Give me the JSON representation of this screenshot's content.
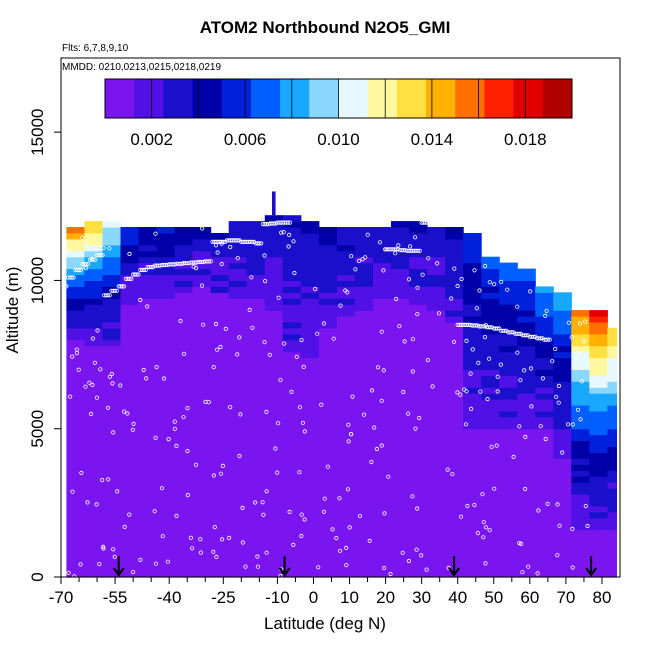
{
  "chart_data": {
    "type": "heatmap",
    "title": "ATOM2 Northbound N2O5_GMI",
    "flights_note": "Flts: 6,7,8,9,10",
    "dates_note": "MMDD: 0210,0213,0215,0218,0219",
    "xlabel": "Latitude (deg N)",
    "ylabel": "Altitude (m)",
    "xlim": [
      -70,
      85
    ],
    "ylim": [
      0,
      17500
    ],
    "x_ticks": [
      -70,
      -55,
      -40,
      -25,
      -10,
      0,
      10,
      20,
      30,
      40,
      50,
      60,
      70,
      80
    ],
    "x_tick_labels": [
      "-70",
      "-55",
      "-40",
      "-25",
      "-10",
      "0",
      "10",
      "20",
      "30",
      "40",
      "50",
      "60",
      "70",
      "80"
    ],
    "x_minor_ticks": [
      -65,
      -60,
      -50,
      -45,
      -35,
      -30,
      -20,
      -15,
      -5,
      5,
      15,
      25,
      35,
      45,
      55,
      65,
      75
    ],
    "y_ticks": [
      0,
      5000,
      10000,
      15000
    ],
    "y_tick_labels": [
      "0",
      "5000",
      "10000",
      "15000"
    ],
    "colorbar": {
      "min": 0.0,
      "max": 0.02,
      "ticks": [
        0.002,
        0.006,
        0.01,
        0.014,
        0.018
      ],
      "tick_labels": [
        "0.002",
        "0.006",
        "0.010",
        "0.014",
        "0.018"
      ],
      "colors": [
        "#7a15f0",
        "#5010e6",
        "#1a10cc",
        "#0000a8",
        "#0020dc",
        "#0060ff",
        "#18a8ff",
        "#8ad8ff",
        "#e8f8ff",
        "#fff8a0",
        "#ffe040",
        "#ffb000",
        "#ff7000",
        "#ff2000",
        "#e00000",
        "#b00000"
      ]
    },
    "surface_level_value": 0.0005,
    "profile": {
      "lat": [
        -70,
        -65,
        -60,
        -55,
        -50,
        -45,
        -40,
        -35,
        -30,
        -25,
        -20,
        -15,
        -10,
        -5,
        0,
        5,
        10,
        15,
        20,
        25,
        30,
        35,
        40,
        45,
        50,
        55,
        60,
        65,
        70,
        75,
        80
      ],
      "top_m": [
        11800,
        12000,
        12000,
        11800,
        11800,
        11800,
        11800,
        11800,
        11600,
        11900,
        12000,
        12100,
        12200,
        12000,
        11800,
        11700,
        11800,
        11700,
        11900,
        11900,
        11800,
        11800,
        11600,
        10800,
        10600,
        10400,
        9800,
        9600,
        9000,
        9000,
        8300
      ],
      "upper_value": [
        0.016,
        0.015,
        0.012,
        0.006,
        0.005,
        0.006,
        0.005,
        0.004,
        0.004,
        0.004,
        0.004,
        0.004,
        0.004,
        0.004,
        0.004,
        0.004,
        0.004,
        0.004,
        0.004,
        0.004,
        0.004,
        0.004,
        0.006,
        0.007,
        0.007,
        0.007,
        0.008,
        0.009,
        0.016,
        0.018,
        0.014
      ],
      "background_top_m": [
        8000,
        7800,
        7800,
        9200,
        9400,
        9400,
        9500,
        9700,
        9500,
        9400,
        9300,
        9000,
        7600,
        7400,
        8400,
        8800,
        9000,
        9300,
        9400,
        9200,
        8900,
        8600,
        5000,
        4900,
        4900,
        5000,
        5000,
        4000,
        1500,
        1500,
        1500
      ]
    },
    "sample_tracks": [
      {
        "lat": [
          -70,
          -68,
          -66,
          -64,
          -62,
          -60,
          -58,
          -56,
          -54,
          -52,
          -50,
          -48,
          -46,
          -44,
          -42,
          -40,
          -38,
          -36,
          -34,
          -32,
          -30
        ],
        "alt_m": [
          9800,
          10100,
          10350,
          10550,
          10700,
          10850,
          9500,
          9650,
          9800,
          10050,
          10200,
          10350,
          10450,
          10500,
          10520,
          10540,
          10560,
          10580,
          10600,
          10620,
          10640
        ]
      },
      {
        "lat": [
          -28,
          -26,
          -24,
          -22,
          -20,
          -18,
          -16,
          -14,
          -12,
          -10,
          -8
        ],
        "alt_m": [
          11300,
          11300,
          11350,
          11350,
          11300,
          11300,
          11250,
          11900,
          11920,
          11950,
          11950
        ]
      },
      {
        "lat": [
          20,
          22,
          24,
          26,
          28,
          30,
          32,
          34,
          36,
          38
        ],
        "alt_m": [
          11050,
          11050,
          11020,
          11000,
          11000,
          11950,
          11980,
          11990,
          11980,
          11950
        ]
      },
      {
        "lat": [
          40,
          42,
          44,
          46,
          48,
          50,
          52,
          54,
          56,
          58,
          60,
          62,
          64
        ],
        "alt_m": [
          8500,
          8500,
          8480,
          8450,
          8420,
          8380,
          8300,
          8250,
          8200,
          8150,
          8100,
          8050,
          8000
        ]
      }
    ],
    "ascent_markers_lat": [
      -54,
      -8,
      39,
      77
    ],
    "scatter_density": 0.55
  }
}
